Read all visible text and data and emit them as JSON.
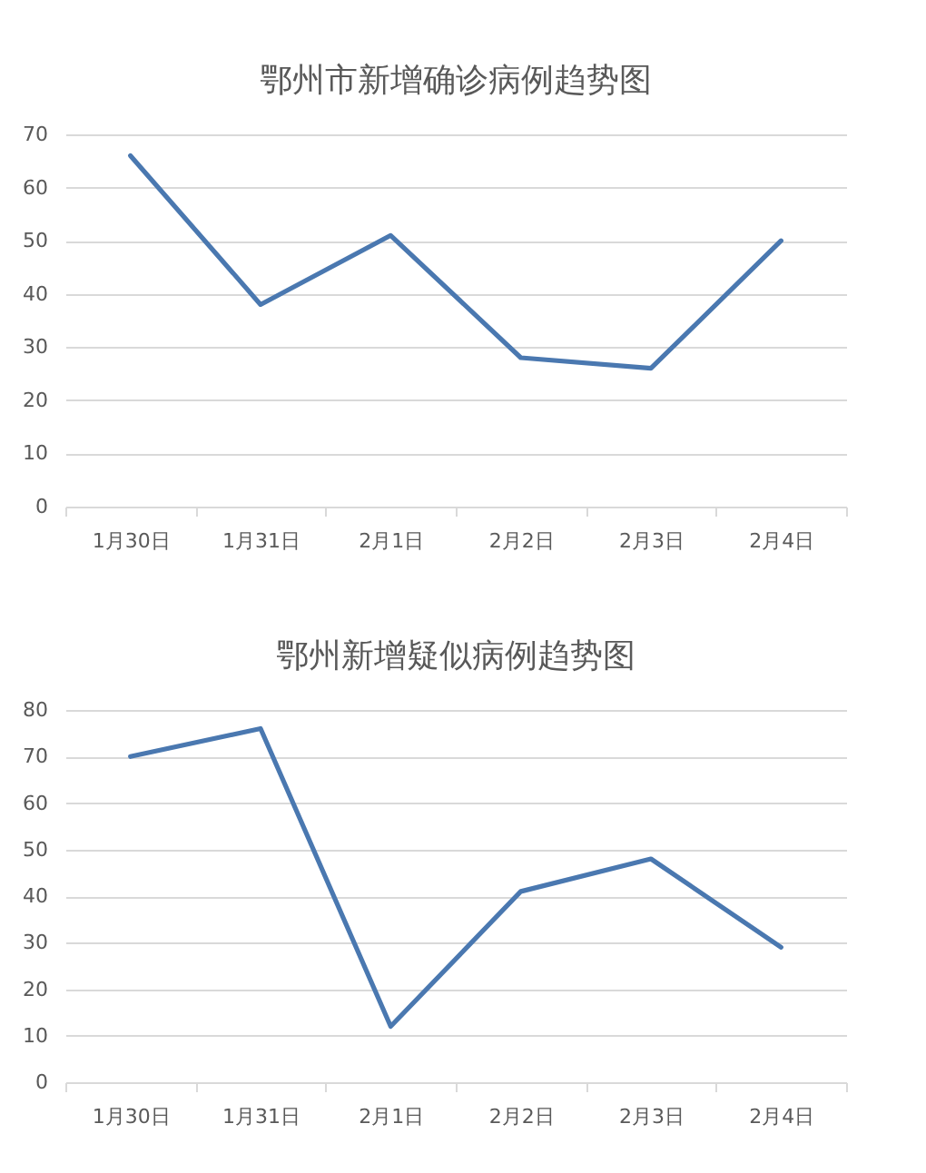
{
  "chart_data": [
    {
      "type": "line",
      "title": "鄂州市新增确诊病例趋势图",
      "categories": [
        "1月30日",
        "1月31日",
        "2月1日",
        "2月2日",
        "2月3日",
        "2月4日"
      ],
      "series": [
        {
          "color": "#4a78b0",
          "values": [
            66,
            38,
            51,
            28,
            26,
            50
          ]
        }
      ],
      "ylim": [
        0,
        70
      ],
      "yticks": [
        0,
        10,
        20,
        30,
        40,
        50,
        60,
        70
      ],
      "grid": "y",
      "marker": "none",
      "line_style": "solid"
    },
    {
      "type": "line",
      "title": "鄂州新增疑似病例趋势图",
      "categories": [
        "1月30日",
        "1月31日",
        "2月1日",
        "2月2日",
        "2月3日",
        "2月4日"
      ],
      "series": [
        {
          "color": "#4a78b0",
          "values": [
            70,
            76,
            12,
            41,
            48,
            29
          ]
        }
      ],
      "ylim": [
        0,
        80
      ],
      "yticks": [
        0,
        10,
        20,
        30,
        40,
        50,
        60,
        70,
        80
      ],
      "grid": "y",
      "marker": "none",
      "line_style": "solid"
    }
  ]
}
